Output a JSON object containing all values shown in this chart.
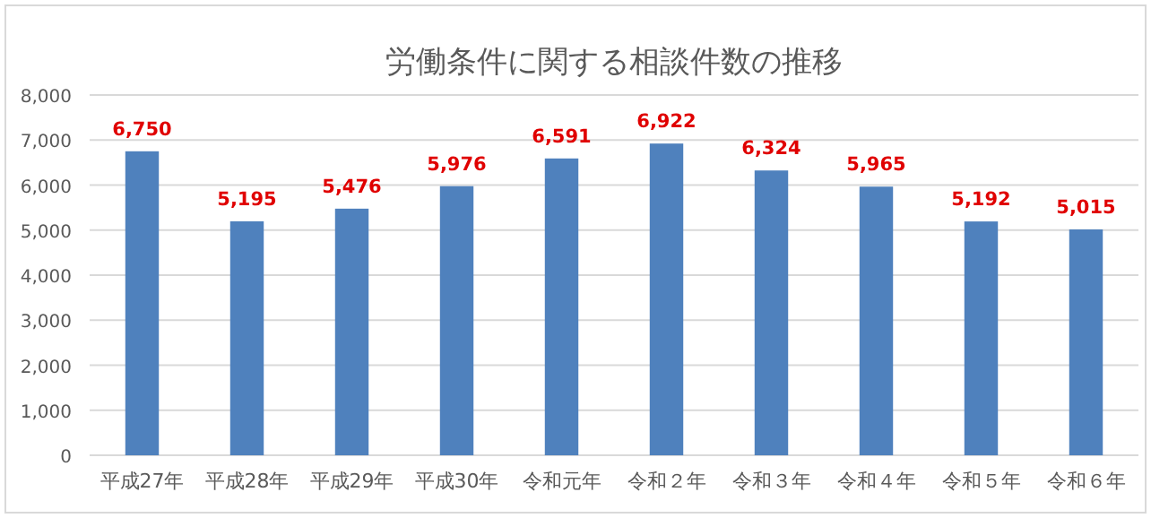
{
  "chart_data": {
    "type": "bar",
    "title": "労働条件に関する相談件数の推移",
    "categories": [
      "平成27年",
      "平成28年",
      "平成29年",
      "平成30年",
      "令和元年",
      "令和２年",
      "令和３年",
      "令和４年",
      "令和５年",
      "令和６年"
    ],
    "values": [
      6750,
      5195,
      5476,
      5976,
      6591,
      6922,
      6324,
      5965,
      5192,
      5015
    ],
    "color": "#4f81bd",
    "value_labels": [
      "6,750",
      "5,195",
      "5,476",
      "5,976",
      "6,591",
      "6,922",
      "6,324",
      "5,965",
      "5,192",
      "5,015"
    ],
    "ylim": [
      0,
      8000
    ],
    "yticks": [
      0,
      {
        "value": 1000,
        "label": "1,000"
      },
      {
        "value": 2000,
        "label": "2,000"
      },
      {
        "value": 3000,
        "label": "3,000"
      },
      {
        "value": 4000,
        "label": "4,000"
      },
      {
        "value": 5000,
        "label": "5,000"
      },
      {
        "value": 6000,
        "label": "6,000"
      },
      {
        "value": 7000,
        "label": "7,000"
      },
      {
        "value": 8000,
        "label": "8,000"
      }
    ],
    "grid": "y"
  }
}
